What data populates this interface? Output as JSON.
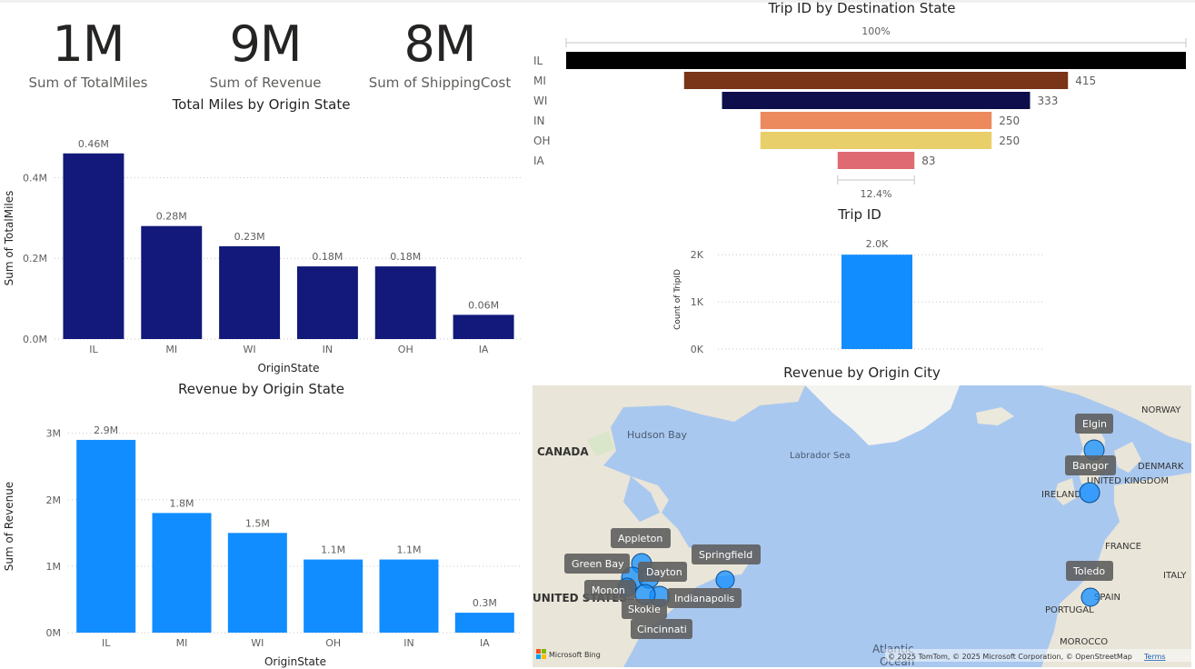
{
  "kpis": [
    {
      "value": "1M",
      "label": "Sum of TotalMiles"
    },
    {
      "value": "9M",
      "label": "Sum of Revenue"
    },
    {
      "value": "8M",
      "label": "Sum of ShippingCost"
    }
  ],
  "funnel": {
    "title": "Trip ID by Destination State",
    "top_pct": "100%",
    "bottom_pct": "12.4%",
    "bar_colors": [
      "#000000",
      "#7a3417",
      "#0d0e4b",
      "#ec8a5e",
      "#e8cf6a",
      "#e06a72"
    ]
  },
  "gauge": {
    "title": "Trip ID"
  },
  "map": {
    "title": "Revenue by Origin City",
    "labels": {
      "canada": "CANADA",
      "us": "UNITED STATES",
      "hudson": "Hudson Bay",
      "labrador": "Labrador Sea",
      "norway": "NORWAY",
      "denmark": "DENMARK",
      "uk": "UNITED KINGDOM",
      "ireland": "IRELAND",
      "france": "FRANCE",
      "italy": "ITALY",
      "spain": "SPAIN",
      "portugal": "PORTUGAL",
      "morocco": "MOROCCO",
      "atlantic": "Atlantic",
      "ocean": "Ocean"
    },
    "city_labels": [
      "Elgin",
      "Bangor",
      "Appleton",
      "Springfield",
      "Green Bay",
      "Dayton",
      "Monon",
      "Indianapolis",
      "Skokie",
      "Cincinnati",
      "Toledo"
    ],
    "attribution": "© 2025 TomTom, © 2025 Microsoft Corporation, © OpenStreetMap",
    "terms": "Terms",
    "logo": "Microsoft Bing"
  },
  "chart_data": [
    {
      "type": "bar",
      "title": "Total Miles by Origin State",
      "xlabel": "OriginState",
      "ylabel": "Sum of TotalMiles",
      "categories": [
        "IL",
        "MI",
        "WI",
        "IN",
        "OH",
        "IA"
      ],
      "values": [
        0.46,
        0.28,
        0.23,
        0.18,
        0.18,
        0.06
      ],
      "data_labels": [
        "0.46M",
        "0.28M",
        "0.23M",
        "0.18M",
        "0.18M",
        "0.06M"
      ],
      "y_ticks": [
        "0.0M",
        "0.2M",
        "0.4M"
      ],
      "ylim": [
        0,
        0.5
      ],
      "color": "#12197a"
    },
    {
      "type": "bar",
      "title": "Revenue by Origin State",
      "xlabel": "OriginState",
      "ylabel": "Sum of Revenue",
      "categories": [
        "IL",
        "MI",
        "WI",
        "OH",
        "IN",
        "IA"
      ],
      "values": [
        2.9,
        1.8,
        1.5,
        1.1,
        1.1,
        0.3
      ],
      "data_labels": [
        "2.9M",
        "1.8M",
        "1.5M",
        "1.1M",
        "1.1M",
        "0.3M"
      ],
      "y_ticks": [
        "0M",
        "1M",
        "2M",
        "3M"
      ],
      "ylim": [
        0,
        3.2
      ],
      "color": "#118dff"
    },
    {
      "type": "funnel",
      "title": "Trip ID by Destination State",
      "categories": [
        "IL",
        "MI",
        "WI",
        "IN",
        "OH",
        "IA"
      ],
      "values": [
        670,
        415,
        333,
        250,
        250,
        83
      ],
      "data_labels": [
        "",
        "415",
        "333",
        "250",
        "250",
        "83"
      ]
    },
    {
      "type": "bar",
      "title": "Trip ID",
      "ylabel": "Count of TripID",
      "categories": [
        ""
      ],
      "values": [
        2.0
      ],
      "data_labels": [
        "2.0K"
      ],
      "y_ticks": [
        "0K",
        "1K",
        "2K"
      ],
      "ylim": [
        0,
        2.1
      ],
      "color": "#118dff"
    }
  ]
}
